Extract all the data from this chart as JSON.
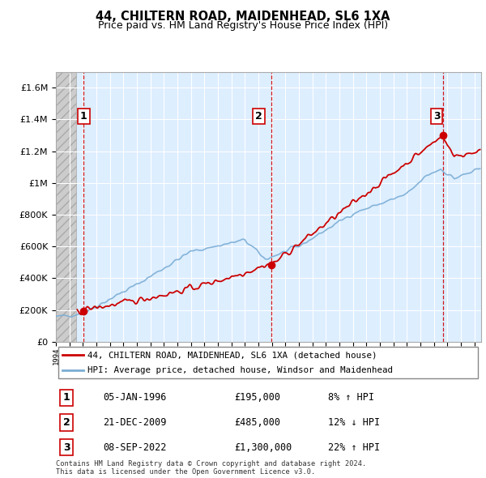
{
  "title": "44, CHILTERN ROAD, MAIDENHEAD, SL6 1XA",
  "subtitle": "Price paid vs. HM Land Registry's House Price Index (HPI)",
  "legend_line1": "44, CHILTERN ROAD, MAIDENHEAD, SL6 1XA (detached house)",
  "legend_line2": "HPI: Average price, detached house, Windsor and Maidenhead",
  "footer": "Contains HM Land Registry data © Crown copyright and database right 2024.\nThis data is licensed under the Open Government Licence v3.0.",
  "transactions": [
    {
      "num": 1,
      "date": "05-JAN-1996",
      "price": 195000,
      "hpi_diff": "8% ↑ HPI",
      "year": 1996.04
    },
    {
      "num": 2,
      "date": "21-DEC-2009",
      "price": 485000,
      "hpi_diff": "12% ↓ HPI",
      "year": 2009.96
    },
    {
      "num": 3,
      "date": "08-SEP-2022",
      "price": 1300000,
      "hpi_diff": "22% ↑ HPI",
      "year": 2022.69
    }
  ],
  "ylim": [
    0,
    1700000
  ],
  "xlim": [
    1994.0,
    2025.5
  ],
  "sold_color": "#cc0000",
  "hpi_color": "#7aadd4",
  "chart_bg": "#ddeeff",
  "hatch_color": "#bbbbbb",
  "grid_color": "#ffffff",
  "table_border_color": "#cc0000",
  "dashed_color": "#cc0000"
}
